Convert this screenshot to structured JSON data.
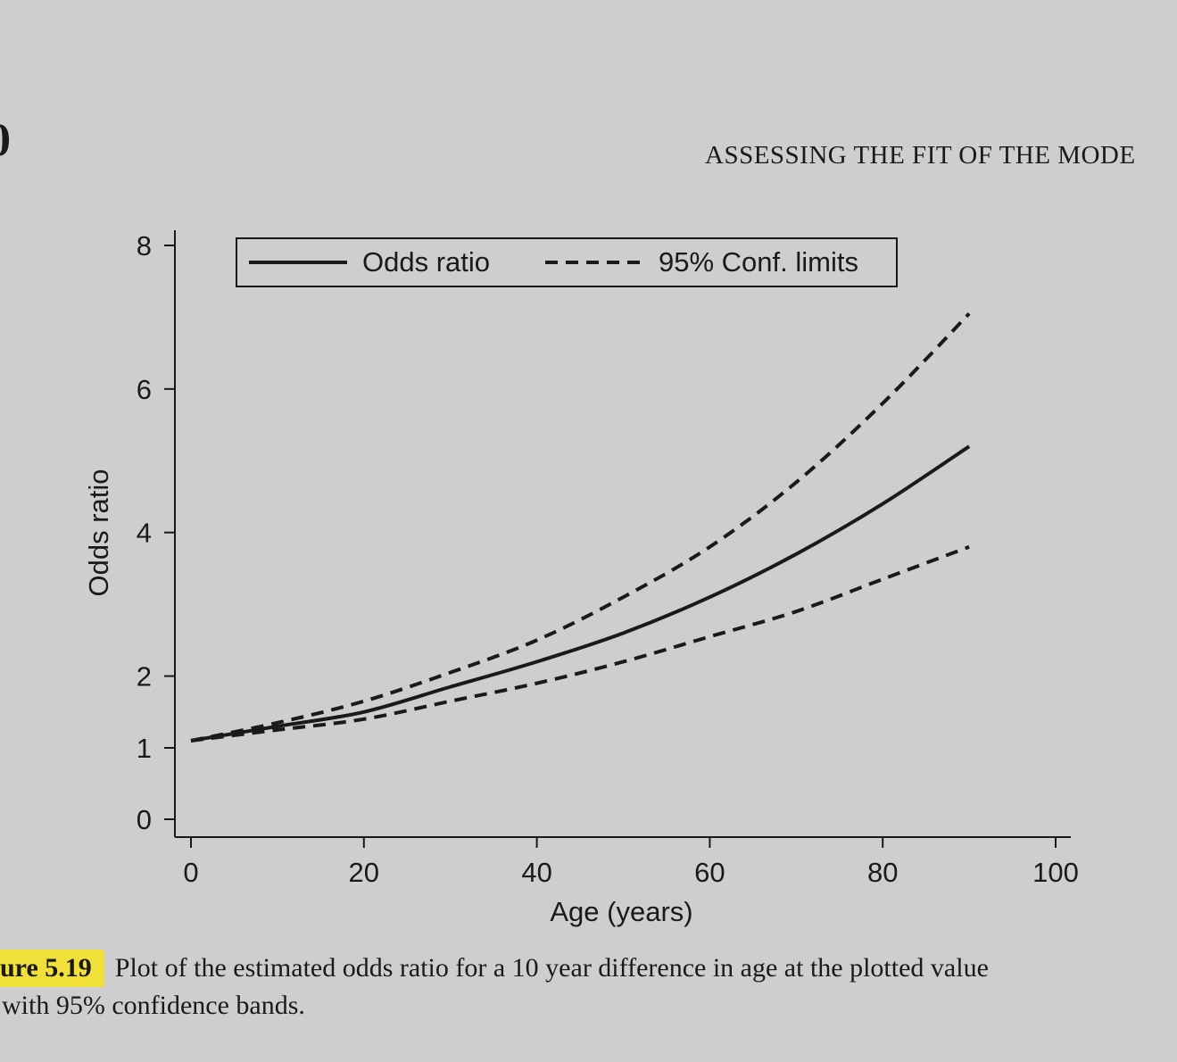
{
  "page": {
    "page_number": "0",
    "running_head": "ASSESSING THE FIT OF THE MODE"
  },
  "caption": {
    "label": "ure 5.19",
    "line1": "Plot of the estimated odds ratio for a 10 year difference in age at the plotted value",
    "line2": "with 95% confidence bands."
  },
  "chart_data": {
    "type": "line",
    "xlabel": "Age (years)",
    "ylabel": "Odds ratio",
    "xlim": [
      0,
      100
    ],
    "ylim": [
      0,
      8
    ],
    "x_ticks": [
      0,
      20,
      40,
      60,
      80,
      100
    ],
    "y_ticks": [
      0,
      1,
      2,
      4,
      6,
      8
    ],
    "legend": {
      "placement": "top-left",
      "border": true
    },
    "x": [
      0,
      10,
      20,
      30,
      40,
      50,
      60,
      70,
      80,
      90
    ],
    "series": [
      {
        "name": "Odds ratio",
        "style": "solid",
        "color": "#1a1a1a",
        "values": [
          1.1,
          1.3,
          1.5,
          1.85,
          2.2,
          2.6,
          3.1,
          3.7,
          4.4,
          5.2
        ]
      },
      {
        "name": "95% Conf. limits",
        "style": "dashed",
        "color": "#1a1a1a",
        "values": [
          1.1,
          1.35,
          1.65,
          2.05,
          2.5,
          3.1,
          3.8,
          4.7,
          5.8,
          7.05
        ]
      },
      {
        "name": "95% Conf. limits (lower)",
        "legend": false,
        "style": "dashed",
        "color": "#1a1a1a",
        "values": [
          1.1,
          1.25,
          1.4,
          1.65,
          1.9,
          2.2,
          2.55,
          2.9,
          3.35,
          3.8
        ]
      }
    ]
  }
}
